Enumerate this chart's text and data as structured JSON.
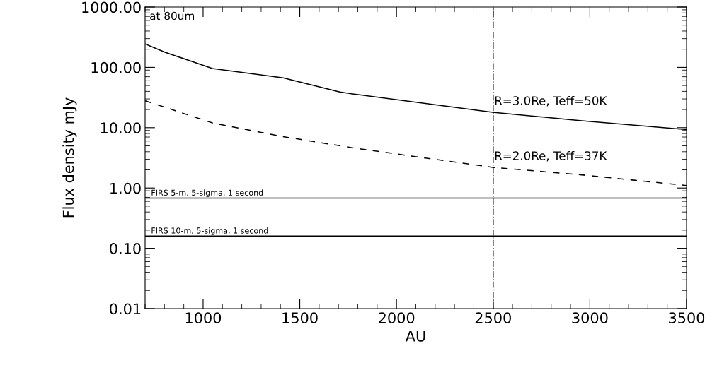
{
  "chart_data": {
    "type": "line",
    "xlabel": "AU",
    "ylabel": "Flux density mJy",
    "log": "y",
    "xlim": [
      700,
      3500
    ],
    "xticks": [
      1000,
      1500,
      2000,
      2500,
      3000,
      3500
    ],
    "ylim": [
      0.01,
      1000
    ],
    "yticks": [
      {
        "value": 0.01,
        "label": "0.01"
      },
      {
        "value": 0.1,
        "label": "0.10"
      },
      {
        "value": 1,
        "label": "1.00"
      },
      {
        "value": 10,
        "label": "10.00"
      },
      {
        "value": 100,
        "label": "100.00"
      },
      {
        "value": 1000,
        "label": "1000.00"
      }
    ],
    "grid": false,
    "marker": "none",
    "series": [
      {
        "color": "#000000",
        "line_style": "solid",
        "x": [
          700,
          803,
          1048,
          1414,
          1707,
          1780,
          2497,
          2958,
          3500
        ],
        "values": [
          245,
          178,
          96,
          67,
          39,
          36,
          18,
          13,
          9.3
        ]
      },
      {
        "color": "#000000",
        "line_style": "dashed",
        "x": [
          700,
          1048,
          1414,
          1780,
          2497,
          2958,
          3500
        ],
        "values": [
          28,
          12,
          7.1,
          4.6,
          2.2,
          1.65,
          1.1
        ]
      }
    ],
    "ref_lines": [
      {
        "axis": "y",
        "value": 0.68,
        "label": "FIRS 5-m, 5-sigma, 1 second",
        "color": "#000000",
        "line_style": "solid"
      },
      {
        "axis": "y",
        "value": 0.16,
        "label": "FIRS 10-m, 5-sigma, 1 second",
        "color": "#000000",
        "line_style": "solid"
      },
      {
        "axis": "x",
        "value": 2500,
        "color": "#000000",
        "line_style": "dashdot"
      }
    ],
    "annotations": [
      "at 80um",
      {
        "text": "R=3.0Re, Teff=50K",
        "x": 2500,
        "y": 18
      },
      {
        "text": "R=2.0Re, Teff=37K",
        "x": 2500,
        "y": 2.2
      }
    ]
  }
}
